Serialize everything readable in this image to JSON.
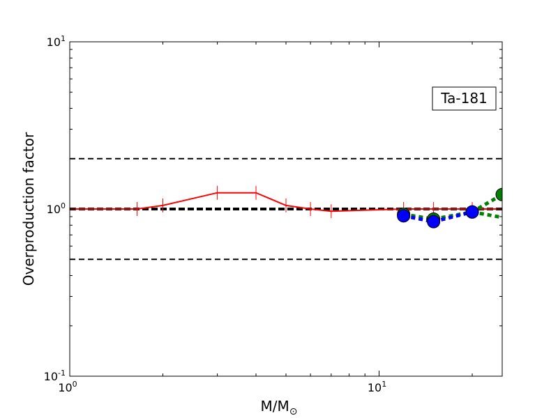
{
  "chart_data": {
    "type": "line",
    "xscale": "log",
    "yscale": "log",
    "xlim": [
      1,
      25
    ],
    "ylim": [
      0.1,
      10
    ],
    "xlabel": "M/M",
    "xlabel_sub": "⊙",
    "ylabel": "Overproduction factor",
    "annotation": "Ta-181",
    "x_ticks": [
      {
        "base": "10",
        "exp": "0",
        "value": 1
      },
      {
        "base": "10",
        "exp": "1",
        "value": 10
      }
    ],
    "y_ticks": [
      {
        "base": "10",
        "exp": "-1",
        "value": 0.1
      },
      {
        "base": "10",
        "exp": "0",
        "value": 1
      },
      {
        "base": "10",
        "exp": "1",
        "value": 10
      }
    ],
    "reference_lines": [
      {
        "y": 2.0,
        "style": "dashed",
        "weight": "thin",
        "color": "#000000"
      },
      {
        "y": 1.0,
        "style": "dashed",
        "weight": "thick",
        "color": "#000000"
      },
      {
        "y": 0.5,
        "style": "dashed",
        "weight": "thin",
        "color": "#000000"
      }
    ],
    "series": [
      {
        "color": "#ff0000",
        "style": "solid",
        "marker": "vline",
        "x": [
          1.0,
          1.65,
          2.0,
          3.0,
          4.0,
          5.0,
          6.0,
          7.0,
          12.0,
          15.0,
          20.0,
          25.0
        ],
        "y": [
          1.0,
          1.0,
          1.05,
          1.25,
          1.25,
          1.05,
          1.0,
          0.97,
          1.0,
          1.0,
          1.0,
          1.0
        ]
      },
      {
        "color": "#008000",
        "style": "dotted",
        "marker": "circle",
        "x": [
          12.0,
          15.0,
          20.0,
          25.0
        ],
        "y": [
          0.93,
          0.87,
          0.96,
          1.22
        ]
      },
      {
        "color": "#008000",
        "style": "dotted",
        "marker": "none",
        "x": [
          20.0,
          25.0
        ],
        "y": [
          0.96,
          0.89
        ]
      },
      {
        "color": "#0000ff",
        "style": "dotted",
        "marker": "circle",
        "x": [
          12.0,
          15.0,
          20.0
        ],
        "y": [
          0.91,
          0.84,
          0.96
        ]
      }
    ]
  }
}
